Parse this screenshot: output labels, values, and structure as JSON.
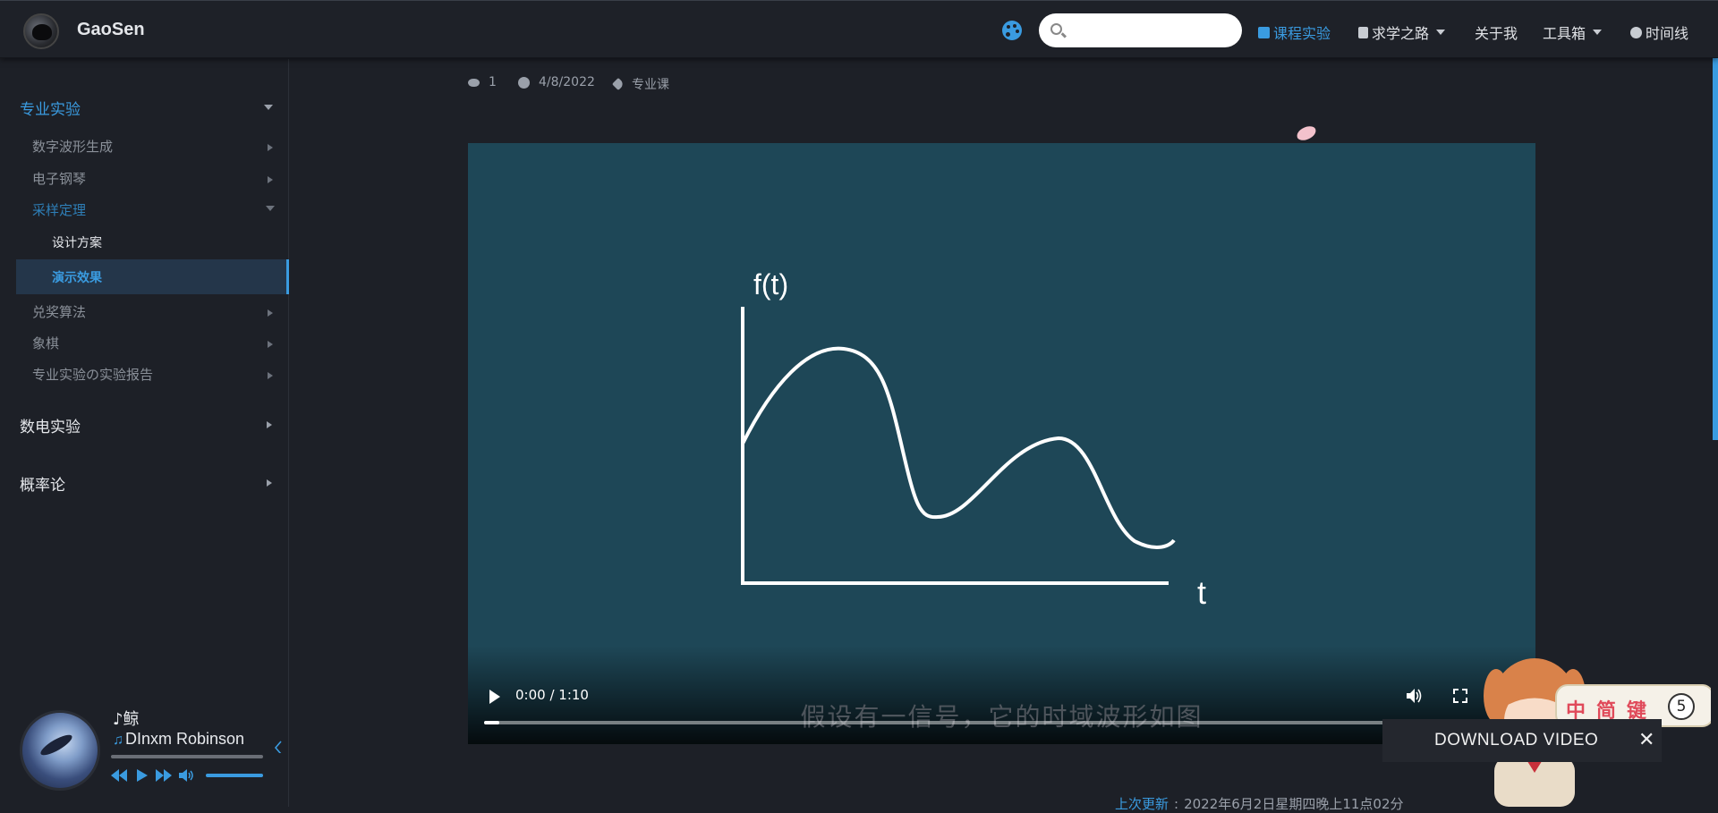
{
  "header": {
    "site_name": "GaoSen",
    "search_placeholder": "",
    "nav": [
      {
        "label": "课程实验",
        "active": true
      },
      {
        "label": "求学之路"
      },
      {
        "label": "关于我"
      },
      {
        "label": "工具箱"
      },
      {
        "label": "时间线"
      }
    ]
  },
  "sidebar": {
    "sections": [
      {
        "label": "专业实验",
        "active": true
      },
      {
        "label": "数电实验"
      },
      {
        "label": "概率论"
      }
    ],
    "sub_items": [
      {
        "label": "数字波形生成"
      },
      {
        "label": "电子钢琴"
      },
      {
        "label": "采样定理",
        "active": true
      },
      {
        "label": "设计方案"
      },
      {
        "label": "演示效果",
        "selected": true
      },
      {
        "label": "兑奖算法"
      },
      {
        "label": "象棋"
      },
      {
        "label": "专业实验の实验报告"
      }
    ]
  },
  "meta": {
    "views": "1",
    "date": "4/8/2022",
    "tag": "专业课"
  },
  "video": {
    "ylabel": "f(t)",
    "xlabel": "t",
    "subtitle": "假设有一信号，它的时域波形如图",
    "time": "0:00 / 1:10",
    "progress": 0.015
  },
  "player": {
    "song": "♪鲸",
    "artist": "DInxm Robinson"
  },
  "download": {
    "label": "DOWNLOAD VIDEO",
    "close": "✕"
  },
  "ime": {
    "chars": [
      "中",
      "简",
      "键"
    ],
    "badge": "5"
  },
  "update": {
    "link": "上次更新",
    "text": "2022年6月2日星期四晚上11点02分"
  },
  "colors": {
    "accent": "#3a9be0",
    "background": "#1d2027",
    "video_bg": "#1e4757"
  }
}
